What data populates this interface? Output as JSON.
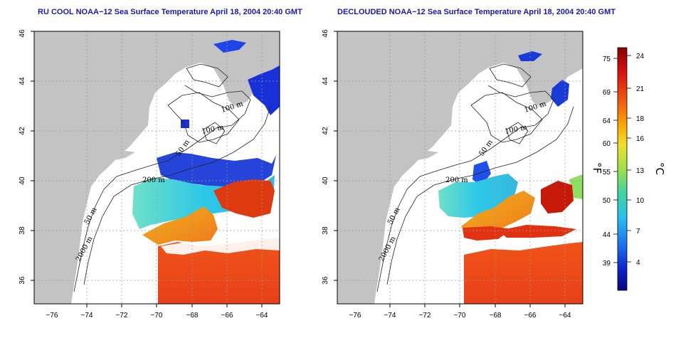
{
  "panels": [
    {
      "id": "left",
      "title": "RU COOL NOAA−12 Sea Surface Temperature April 18, 2004 20:40 GMT",
      "type": "cloudy"
    },
    {
      "id": "right",
      "title": "DECLOUDED NOAA−12 Sea Surface Temperature April 18, 2004 20:40 GMT",
      "type": "declouded"
    }
  ],
  "map": {
    "lon_range": [
      -77,
      -63
    ],
    "lat_range": [
      35,
      46
    ],
    "lon_ticks": [
      -76,
      -74,
      -72,
      -70,
      -68,
      -66,
      -64
    ],
    "lon_tick_labels": [
      "−76",
      "−74",
      "−72",
      "−70",
      "−68",
      "−66",
      "−64"
    ],
    "lat_ticks": [
      36,
      38,
      40,
      42,
      44,
      46
    ],
    "lat_tick_labels": [
      "36",
      "38",
      "40",
      "42",
      "44",
      "46"
    ],
    "grid": true,
    "land_color": "#c3c3c3",
    "ocean_color": "#ffffff",
    "contour_labels": [
      "100 m",
      "100 m",
      "50 m",
      "200 m",
      "50 m",
      "2000 m"
    ]
  },
  "colorbar": {
    "celsius_ticks": [
      "24",
      "21",
      "18",
      "16",
      "13",
      "10",
      "7",
      "4"
    ],
    "fahrenheit_ticks": [
      "75",
      "69",
      "64",
      "60",
      "55",
      "50",
      "44",
      "39"
    ],
    "celsius_label": "°C",
    "fahrenheit_label": "°F",
    "colors": [
      "#8b0000",
      "#d81010",
      "#f25a10",
      "#f7a800",
      "#eee02a",
      "#9ee04a",
      "#3fd4a0",
      "#28c0ef",
      "#1a6cf0",
      "#0a1fc8",
      "#08087a"
    ]
  }
}
